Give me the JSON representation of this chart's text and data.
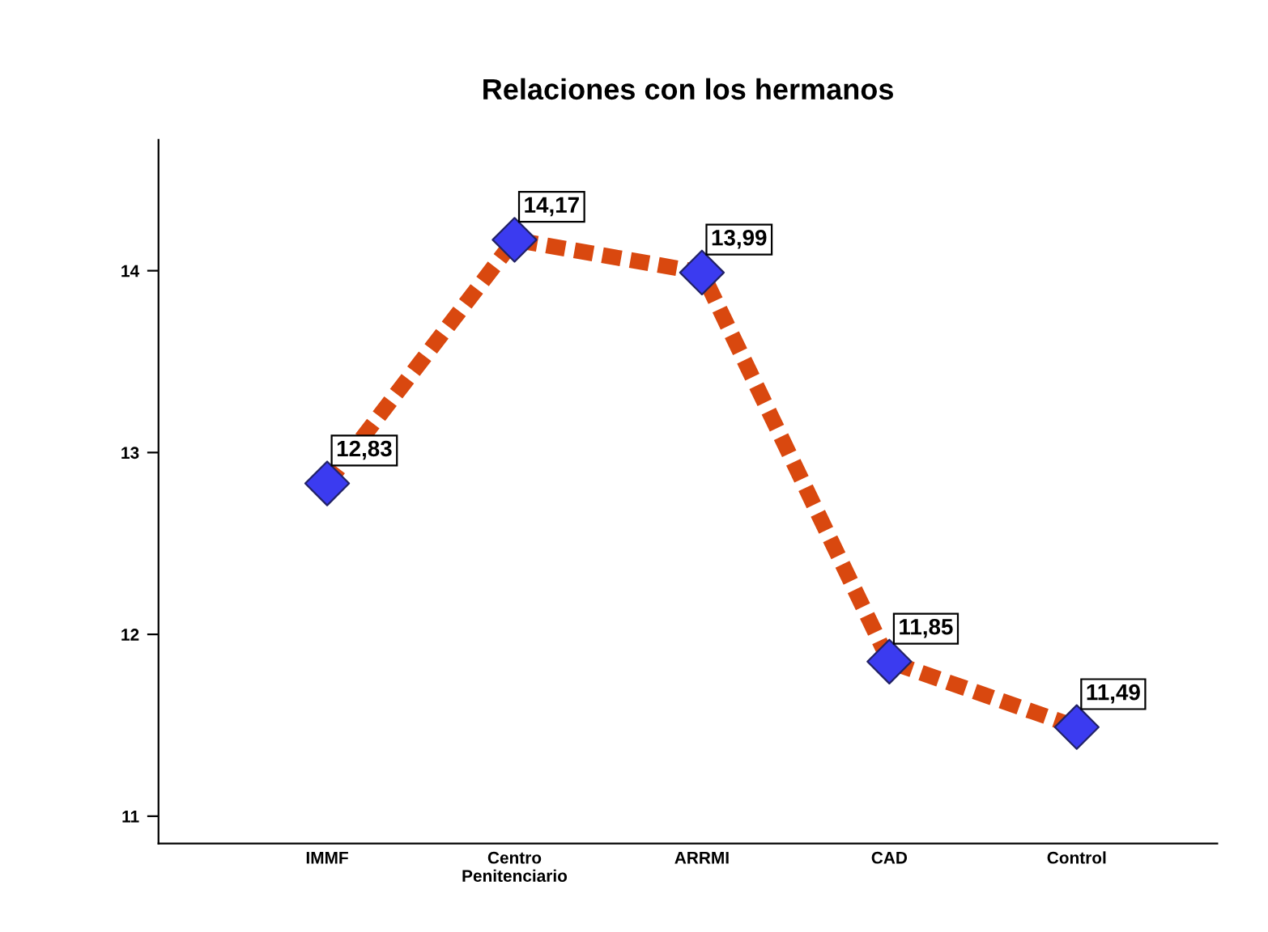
{
  "chart_data": {
    "type": "line",
    "title": "Relaciones con los hermanos",
    "categories": [
      "IMMF",
      "Centro\nPenitenciario",
      "ARRMI",
      "CAD",
      "Control"
    ],
    "series": [
      {
        "color": "#d9480f",
        "colors": [
          "#3b3bf0",
          "#3b3bf0",
          "#3b3bf0",
          "#3b3bf0",
          "#3b3bf0"
        ],
        "values": [
          12.83,
          14.17,
          13.99,
          11.85,
          11.49
        ],
        "value_labels": [
          "12,83",
          "14,17",
          "13,99",
          "11,85",
          "11,49"
        ]
      }
    ],
    "ylim": [
      10.85,
      14.72
    ],
    "yticks": [
      11,
      12,
      13,
      14
    ],
    "grid": false,
    "legend": false,
    "marker": "diamond",
    "line_style": "dashed"
  }
}
